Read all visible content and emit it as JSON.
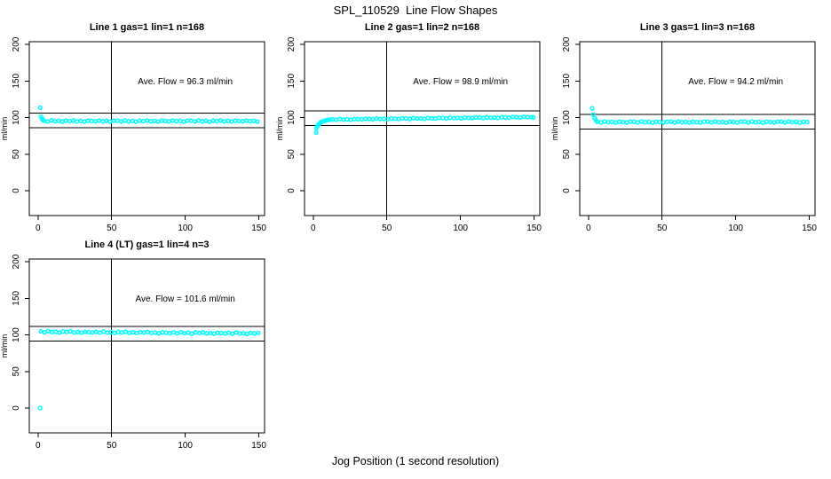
{
  "title": "SPL_110529  Line Flow Shapes",
  "xlabel": "Jog Position (1 second resolution)",
  "colors": {
    "point": "#00FFFF",
    "axis": "#000000",
    "background": "#FFFFFF"
  },
  "chart_data": {
    "type": "scatter",
    "title": "SPL_110529  Line Flow Shapes",
    "xlabel": "Jog Position (1 second resolution)",
    "ylabel": "ml/min",
    "x_ticks": [
      0,
      50,
      100,
      150
    ],
    "y_ticks": [
      0,
      50,
      100,
      150,
      200
    ],
    "xlim": [
      -6,
      156
    ],
    "ylim": [
      -34,
      204
    ],
    "vline_x": 50,
    "grid": false,
    "legend": "none",
    "marker": "open-circle",
    "panels": [
      {
        "title": "Line 1 gas=1 lin=1 n=168",
        "annotation": "Ave. Flow =  96.3  ml/min",
        "ave_flow": 96.3,
        "n": 168,
        "hlines": [
          106.3,
          86.3
        ],
        "points": [
          [
            1.5,
            113.5
          ],
          [
            2,
            101.2
          ],
          [
            2.7,
            98.6
          ],
          [
            3.3,
            97
          ],
          [
            4,
            95.6
          ],
          [
            6.5,
            94.6
          ],
          [
            9,
            96.1
          ],
          [
            11.5,
            94.9
          ],
          [
            14,
            95.4
          ],
          [
            16.5,
            94.3
          ],
          [
            19,
            95.8
          ],
          [
            21.5,
            95.1
          ],
          [
            24,
            96
          ],
          [
            26.5,
            94.7
          ],
          [
            29,
            95.3
          ],
          [
            31.5,
            94.5
          ],
          [
            34,
            95.7
          ],
          [
            36.5,
            95.2
          ],
          [
            39,
            94.8
          ],
          [
            41.5,
            95.9
          ],
          [
            44,
            95
          ],
          [
            46.5,
            95.5
          ],
          [
            49,
            94.4
          ],
          [
            51.5,
            95.8
          ],
          [
            54,
            95.6
          ],
          [
            56.5,
            94.6
          ],
          [
            59,
            96.1
          ],
          [
            61.5,
            94.9
          ],
          [
            64,
            95.4
          ],
          [
            66.5,
            94.3
          ],
          [
            69,
            95.8
          ],
          [
            71.5,
            95.1
          ],
          [
            74,
            96
          ],
          [
            76.5,
            94.7
          ],
          [
            79,
            95.3
          ],
          [
            81.5,
            94.5
          ],
          [
            84,
            95.7
          ],
          [
            86.5,
            95.2
          ],
          [
            89,
            94.8
          ],
          [
            91.5,
            95.9
          ],
          [
            94,
            95
          ],
          [
            96.5,
            95.5
          ],
          [
            99,
            94.4
          ],
          [
            101.5,
            95.8
          ],
          [
            104,
            95.6
          ],
          [
            106.5,
            94.6
          ],
          [
            109,
            96.1
          ],
          [
            111.5,
            94.9
          ],
          [
            114,
            95.4
          ],
          [
            116.5,
            94.3
          ],
          [
            119,
            95.8
          ],
          [
            121.5,
            95.1
          ],
          [
            124,
            96
          ],
          [
            126.5,
            94.7
          ],
          [
            129,
            95.3
          ],
          [
            131.5,
            94.5
          ],
          [
            134,
            95.7
          ],
          [
            136.5,
            95.2
          ],
          [
            139,
            94.8
          ],
          [
            141.5,
            95.9
          ],
          [
            144,
            95
          ],
          [
            146.5,
            95.5
          ],
          [
            149,
            94.4
          ]
        ]
      },
      {
        "title": "Line 2 gas=1 lin=2 n=168",
        "annotation": "Ave. Flow =  98.9  ml/min",
        "ave_flow": 98.9,
        "n": 168,
        "hlines": [
          108.9,
          88.9
        ],
        "points": [
          [
            2,
            79.5
          ],
          [
            2.3,
            85.6
          ],
          [
            2.9,
            88
          ],
          [
            3.6,
            90.3
          ],
          [
            4.4,
            92
          ],
          [
            5.2,
            93.4
          ],
          [
            6.2,
            94.5
          ],
          [
            7.3,
            95.4
          ],
          [
            8.5,
            96.1
          ],
          [
            10,
            96.7
          ],
          [
            11.5,
            97.1
          ],
          [
            13,
            97.6
          ],
          [
            15.5,
            97
          ],
          [
            18,
            98
          ],
          [
            20.5,
            97.3
          ],
          [
            23,
            97.6
          ],
          [
            25.5,
            96.9
          ],
          [
            28,
            98
          ],
          [
            30.5,
            97.7
          ],
          [
            33,
            97.5
          ],
          [
            35.5,
            98.3
          ],
          [
            38,
            98.2
          ],
          [
            40.5,
            97.5
          ],
          [
            43,
            98.6
          ],
          [
            45.5,
            98
          ],
          [
            48,
            98.2
          ],
          [
            50.5,
            97.6
          ],
          [
            53,
            98.7
          ],
          [
            55.5,
            98.3
          ],
          [
            58,
            98
          ],
          [
            60.5,
            98.9
          ],
          [
            63,
            98.7
          ],
          [
            65.5,
            98.1
          ],
          [
            68,
            99.2
          ],
          [
            70.5,
            98.6
          ],
          [
            73,
            98.8
          ],
          [
            75.5,
            98.2
          ],
          [
            78,
            99.3
          ],
          [
            80.5,
            98.9
          ],
          [
            83,
            98.6
          ],
          [
            85.5,
            99.5
          ],
          [
            88,
            99.3
          ],
          [
            90.5,
            98.7
          ],
          [
            93,
            99.8
          ],
          [
            95.5,
            99.2
          ],
          [
            98,
            99.4
          ],
          [
            100.5,
            98.8
          ],
          [
            103,
            99.9
          ],
          [
            105.5,
            99.5
          ],
          [
            108,
            99.2
          ],
          [
            110.5,
            100.1
          ],
          [
            113,
            99.9
          ],
          [
            115.5,
            99.3
          ],
          [
            118,
            100.4
          ],
          [
            120.5,
            99.8
          ],
          [
            123,
            100
          ],
          [
            125.5,
            99.4
          ],
          [
            128,
            100.5
          ],
          [
            130.5,
            100.1
          ],
          [
            133,
            99.8
          ],
          [
            135.5,
            100.7
          ],
          [
            138,
            100.5
          ],
          [
            140.5,
            99.9
          ],
          [
            143,
            101
          ],
          [
            145.5,
            100.4
          ],
          [
            148,
            100.6
          ],
          [
            149.5,
            100.2
          ]
        ]
      },
      {
        "title": "Line 3 gas=1 lin=3 n=168",
        "annotation": "Ave. Flow =  94.2  ml/min",
        "ave_flow": 94.2,
        "n": 168,
        "hlines": [
          104.2,
          84.2
        ],
        "points": [
          [
            2.5,
            112.5
          ],
          [
            3.3,
            104
          ],
          [
            4.2,
            99.2
          ],
          [
            5.2,
            96.3
          ],
          [
            6,
            94.3
          ],
          [
            8.5,
            93.3
          ],
          [
            11,
            94.6
          ],
          [
            13.5,
            93.6
          ],
          [
            16,
            94
          ],
          [
            18.5,
            93
          ],
          [
            21,
            94.3
          ],
          [
            23.5,
            93.8
          ],
          [
            26,
            93.4
          ],
          [
            28.5,
            94.4
          ],
          [
            31,
            94.3
          ],
          [
            33.5,
            93.3
          ],
          [
            36,
            94.6
          ],
          [
            38.5,
            93.6
          ],
          [
            41,
            94
          ],
          [
            43.5,
            93
          ],
          [
            46,
            94.3
          ],
          [
            48.5,
            93.8
          ],
          [
            51,
            93.4
          ],
          [
            53.5,
            94.4
          ],
          [
            56,
            94.3
          ],
          [
            58.5,
            93.3
          ],
          [
            61,
            94.6
          ],
          [
            63.5,
            93.6
          ],
          [
            66,
            94
          ],
          [
            68.5,
            93
          ],
          [
            71,
            94.3
          ],
          [
            73.5,
            93.8
          ],
          [
            76,
            93.4
          ],
          [
            78.5,
            94.4
          ],
          [
            81,
            94.3
          ],
          [
            83.5,
            93.3
          ],
          [
            86,
            94.6
          ],
          [
            88.5,
            93.6
          ],
          [
            91,
            94
          ],
          [
            93.5,
            93
          ],
          [
            96,
            94.3
          ],
          [
            98.5,
            93.8
          ],
          [
            101,
            93.4
          ],
          [
            103.5,
            94.4
          ],
          [
            106,
            94.3
          ],
          [
            108.5,
            93.3
          ],
          [
            111,
            94.6
          ],
          [
            113.5,
            93.6
          ],
          [
            116,
            94
          ],
          [
            118.5,
            93
          ],
          [
            121,
            94.3
          ],
          [
            123.5,
            93.8
          ],
          [
            126,
            93.4
          ],
          [
            128.5,
            94.4
          ],
          [
            131,
            94.3
          ],
          [
            133.5,
            93.3
          ],
          [
            136,
            94.6
          ],
          [
            138.5,
            93.6
          ],
          [
            141,
            94
          ],
          [
            143.5,
            93
          ],
          [
            146,
            94.3
          ],
          [
            148.5,
            93.8
          ]
        ]
      },
      {
        "title": "Line 4 (LT) gas=1 lin=4 n=3",
        "annotation": "Ave. Flow =  101.6  ml/min",
        "ave_flow": 101.6,
        "n": 3,
        "hlines": [
          111.6,
          91.6
        ],
        "points": [
          [
            1.5,
            0
          ],
          [
            2,
            104.8
          ],
          [
            4.5,
            103.5
          ],
          [
            7,
            105.1
          ],
          [
            9.5,
            103.8
          ],
          [
            12,
            104.3
          ],
          [
            14.5,
            103
          ],
          [
            17,
            104.7
          ],
          [
            19.5,
            103.9
          ],
          [
            22,
            104.8
          ],
          [
            24.5,
            103.3
          ],
          [
            27,
            103.9
          ],
          [
            29.5,
            102.9
          ],
          [
            32,
            104.2
          ],
          [
            34.5,
            103.7
          ],
          [
            37,
            103.2
          ],
          [
            39.5,
            104.2
          ],
          [
            42,
            102.9
          ],
          [
            44.5,
            104.5
          ],
          [
            47,
            103.2
          ],
          [
            49.5,
            103.7
          ],
          [
            52,
            102.5
          ],
          [
            54.5,
            104
          ],
          [
            57,
            103.3
          ],
          [
            59.5,
            104.3
          ],
          [
            62,
            102.7
          ],
          [
            64.5,
            103.4
          ],
          [
            67,
            102.5
          ],
          [
            69.5,
            103.7
          ],
          [
            72,
            103.2
          ],
          [
            74.5,
            104.1
          ],
          [
            77,
            102.5
          ],
          [
            79.5,
            103.1
          ],
          [
            82,
            102.1
          ],
          [
            84.5,
            103.4
          ],
          [
            87,
            102.9
          ],
          [
            89.5,
            102.4
          ],
          [
            92,
            103.4
          ],
          [
            94.5,
            102.1
          ],
          [
            97,
            103.7
          ],
          [
            99.5,
            102.4
          ],
          [
            102,
            102.9
          ],
          [
            104.5,
            101.7
          ],
          [
            107,
            103.4
          ],
          [
            109.5,
            102.6
          ],
          [
            112,
            103.5
          ],
          [
            114.5,
            102
          ],
          [
            117,
            102.6
          ],
          [
            119.5,
            101.7
          ],
          [
            122,
            102.9
          ],
          [
            124.5,
            102.4
          ],
          [
            127,
            101.9
          ],
          [
            129.5,
            102.9
          ],
          [
            132,
            101.6
          ],
          [
            134.5,
            103.2
          ],
          [
            137,
            101.9
          ],
          [
            139.5,
            102.4
          ],
          [
            142,
            101.2
          ],
          [
            144.5,
            102.7
          ],
          [
            147,
            102
          ],
          [
            149.5,
            102.5
          ]
        ]
      }
    ]
  }
}
